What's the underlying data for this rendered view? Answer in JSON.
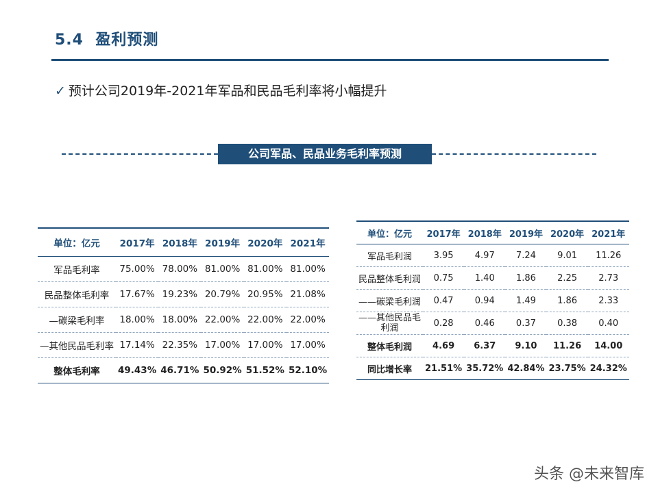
{
  "header": {
    "number": "5.4",
    "title": "盈利预测"
  },
  "bullet": "预计公司2019年-2021年军品和民品毛利率将小幅提升",
  "banner": "公司军品、民品业务毛利率预测",
  "table1": {
    "header": [
      "单位：亿元",
      "2017年",
      "2018年",
      "2019年",
      "2020年",
      "2021年"
    ],
    "rows": [
      [
        "军品毛利率",
        "75.00%",
        "78.00%",
        "81.00%",
        "81.00%",
        "81.00%"
      ],
      [
        "民品整体毛利率",
        "17.67%",
        "19.23%",
        "20.79%",
        "20.95%",
        "21.08%"
      ],
      [
        "—碳梁毛利率",
        "18.00%",
        "18.00%",
        "22.00%",
        "22.00%",
        "22.00%"
      ],
      [
        "—其他民品毛利率",
        "17.14%",
        "22.35%",
        "17.00%",
        "17.00%",
        "17.00%"
      ],
      [
        "整体毛利率",
        "49.43%",
        "46.71%",
        "50.92%",
        "51.52%",
        "52.10%"
      ]
    ]
  },
  "table2": {
    "header": [
      "单位：亿元",
      "2017年",
      "2018年",
      "2019年",
      "2020年",
      "2021年"
    ],
    "rows": [
      [
        "军品毛利润",
        "3.95",
        "4.97",
        "7.24",
        "9.01",
        "11.26"
      ],
      [
        "民品整体毛利润",
        "0.75",
        "1.40",
        "1.86",
        "2.25",
        "2.73"
      ],
      [
        "——碳梁毛利润",
        "0.47",
        "0.94",
        "1.49",
        "1.86",
        "2.33"
      ],
      [
        "——其他民品毛利润",
        "0.28",
        "0.46",
        "0.37",
        "0.38",
        "0.40"
      ],
      [
        "整体毛利润",
        "4.69",
        "6.37",
        "9.10",
        "11.26",
        "14.00"
      ],
      [
        "同比增长率",
        "21.51%",
        "35.72%",
        "42.84%",
        "23.75%",
        "24.32%"
      ]
    ]
  },
  "watermark": "头条 @未来智库"
}
